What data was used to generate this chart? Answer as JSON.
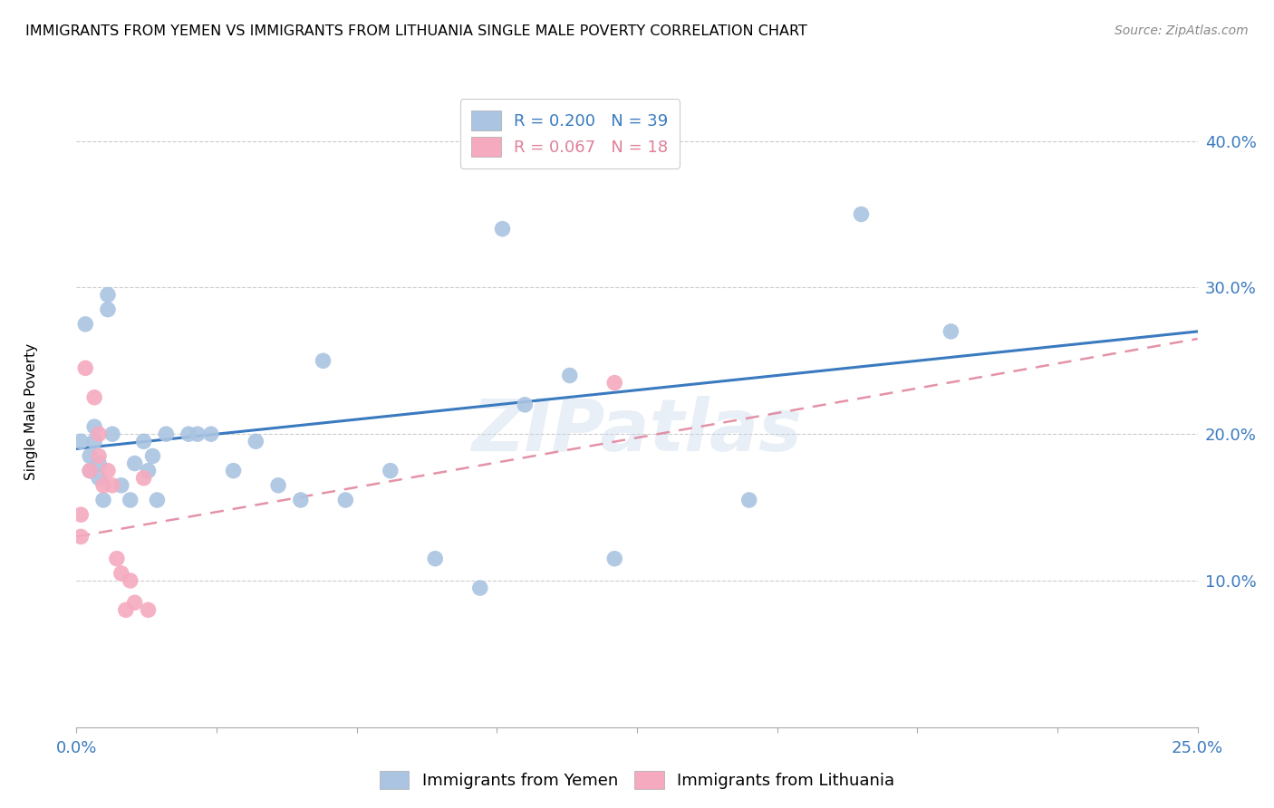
{
  "title": "IMMIGRANTS FROM YEMEN VS IMMIGRANTS FROM LITHUANIA SINGLE MALE POVERTY CORRELATION CHART",
  "source": "Source: ZipAtlas.com",
  "ylabel": "Single Male Poverty",
  "ytick_labels": [
    "10.0%",
    "20.0%",
    "30.0%",
    "40.0%"
  ],
  "ytick_values": [
    0.1,
    0.2,
    0.3,
    0.4
  ],
  "xlim": [
    0.0,
    0.25
  ],
  "ylim": [
    0.0,
    0.43
  ],
  "legend_blue_R": "R = 0.200",
  "legend_blue_N": "N = 39",
  "legend_pink_R": "R = 0.067",
  "legend_pink_N": "N = 18",
  "legend_label_blue": "Immigrants from Yemen",
  "legend_label_pink": "Immigrants from Lithuania",
  "watermark": "ZIPatlas",
  "blue_color": "#aac4e2",
  "pink_color": "#f5aabf",
  "line_blue": "#3a7abf",
  "line_pink": "#e08098",
  "yemen_x": [
    0.001,
    0.002,
    0.003,
    0.003,
    0.004,
    0.004,
    0.005,
    0.005,
    0.006,
    0.007,
    0.007,
    0.008,
    0.01,
    0.012,
    0.013,
    0.015,
    0.016,
    0.017,
    0.018,
    0.02,
    0.025,
    0.027,
    0.03,
    0.035,
    0.04,
    0.045,
    0.05,
    0.055,
    0.06,
    0.07,
    0.08,
    0.09,
    0.095,
    0.1,
    0.11,
    0.12,
    0.15,
    0.175,
    0.195
  ],
  "yemen_y": [
    0.195,
    0.275,
    0.185,
    0.175,
    0.205,
    0.195,
    0.18,
    0.17,
    0.155,
    0.295,
    0.285,
    0.2,
    0.165,
    0.155,
    0.18,
    0.195,
    0.175,
    0.185,
    0.155,
    0.2,
    0.2,
    0.2,
    0.2,
    0.175,
    0.195,
    0.165,
    0.155,
    0.25,
    0.155,
    0.175,
    0.115,
    0.095,
    0.34,
    0.22,
    0.24,
    0.115,
    0.155,
    0.35,
    0.27
  ],
  "lith_x": [
    0.001,
    0.001,
    0.002,
    0.003,
    0.004,
    0.005,
    0.005,
    0.006,
    0.007,
    0.008,
    0.009,
    0.01,
    0.011,
    0.012,
    0.013,
    0.015,
    0.016,
    0.12
  ],
  "lith_y": [
    0.13,
    0.145,
    0.245,
    0.175,
    0.225,
    0.2,
    0.185,
    0.165,
    0.175,
    0.165,
    0.115,
    0.105,
    0.08,
    0.1,
    0.085,
    0.17,
    0.08,
    0.235
  ],
  "blue_line_x0": 0.0,
  "blue_line_y0": 0.19,
  "blue_line_x1": 0.25,
  "blue_line_y1": 0.27,
  "pink_line_x0": 0.0,
  "pink_line_y0": 0.13,
  "pink_line_x1": 0.25,
  "pink_line_y1": 0.265
}
